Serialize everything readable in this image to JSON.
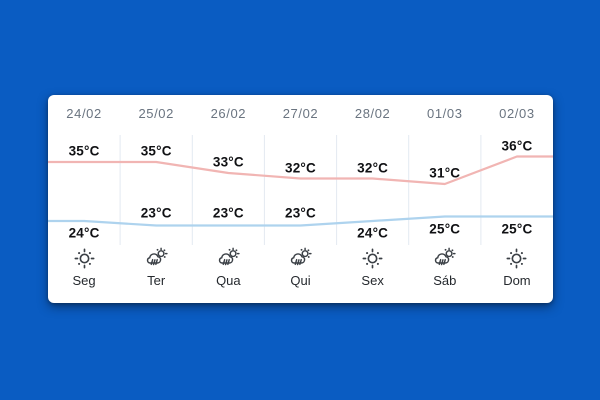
{
  "colors": {
    "background": "#0a5cc2",
    "card": "#ffffff",
    "grid_line": "#e3e9f1",
    "max_line": "#f1b5b3",
    "min_line": "#aed3ee",
    "date_text": "#6a7480",
    "temp_text": "#101114",
    "weekday_text": "#25292e",
    "icon_stroke": "#3b4046"
  },
  "chart_data": {
    "type": "line",
    "title": "",
    "unit": "°C",
    "categories": [
      "24/02",
      "25/02",
      "26/02",
      "27/02",
      "28/02",
      "01/03",
      "02/03"
    ],
    "series": [
      {
        "name": "max-temp",
        "color": "#f1b5b3",
        "values": [
          35,
          35,
          33,
          32,
          32,
          31,
          36
        ]
      },
      {
        "name": "min-temp",
        "color": "#aed3ee",
        "values": [
          24,
          23,
          23,
          23,
          24,
          25,
          25
        ]
      }
    ],
    "grid": "vertical-separators-only",
    "legend": "none",
    "days": [
      {
        "date": "24/02",
        "high_label": "35°C",
        "low_label": "24°C",
        "low_label_pos": "below",
        "icon": "sun",
        "weekday": "Seg"
      },
      {
        "date": "25/02",
        "high_label": "35°C",
        "low_label": "23°C",
        "low_label_pos": "above",
        "icon": "rain",
        "weekday": "Ter"
      },
      {
        "date": "26/02",
        "high_label": "33°C",
        "low_label": "23°C",
        "low_label_pos": "above",
        "icon": "rain",
        "weekday": "Qua"
      },
      {
        "date": "27/02",
        "high_label": "32°C",
        "low_label": "23°C",
        "low_label_pos": "above",
        "icon": "rain",
        "weekday": "Qui"
      },
      {
        "date": "28/02",
        "high_label": "32°C",
        "low_label": "24°C",
        "low_label_pos": "below",
        "icon": "sun",
        "weekday": "Sex"
      },
      {
        "date": "01/03",
        "high_label": "31°C",
        "low_label": "25°C",
        "low_label_pos": "below",
        "icon": "rain",
        "weekday": "Sáb"
      },
      {
        "date": "02/03",
        "high_label": "36°C",
        "low_label": "25°C",
        "low_label_pos": "below",
        "icon": "sun",
        "weekday": "Dom"
      }
    ]
  }
}
